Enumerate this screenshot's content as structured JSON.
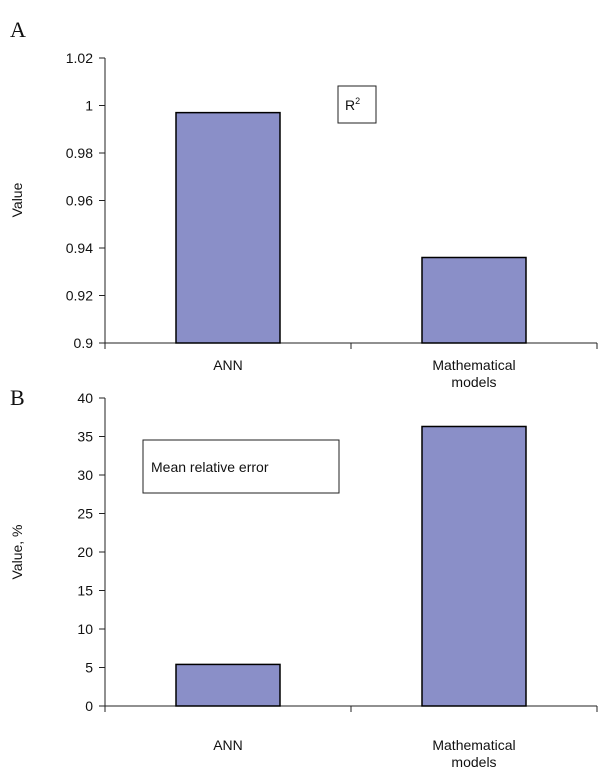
{
  "chart_data": [
    {
      "panel_label": "A",
      "type": "bar",
      "categories": [
        "ANN",
        "Mathematical models"
      ],
      "category_lines": [
        [
          "ANN"
        ],
        [
          "Mathematical",
          "models"
        ]
      ],
      "values": [
        0.997,
        0.936
      ],
      "ylabel": "Value",
      "annotation": {
        "main": "R",
        "sup": "2"
      },
      "ylim": [
        0.9,
        1.02
      ],
      "yticks": [
        "0.9",
        "0.92",
        "0.94",
        "0.96",
        "0.98",
        "1",
        "1.02"
      ],
      "bar_color": "#8a8fc8",
      "grid": false
    },
    {
      "panel_label": "B",
      "type": "bar",
      "categories": [
        "ANN",
        "Mathematical models"
      ],
      "category_lines": [
        [
          "ANN"
        ],
        [
          "Mathematical",
          "models"
        ]
      ],
      "values": [
        5.4,
        36.3
      ],
      "ylabel": "Value, %",
      "annotation": {
        "main": "Mean relative error",
        "sup": ""
      },
      "ylim": [
        0,
        40
      ],
      "yticks": [
        "0",
        "5",
        "10",
        "15",
        "20",
        "25",
        "30",
        "35",
        "40"
      ],
      "bar_color": "#8a8fc8",
      "grid": false
    }
  ]
}
